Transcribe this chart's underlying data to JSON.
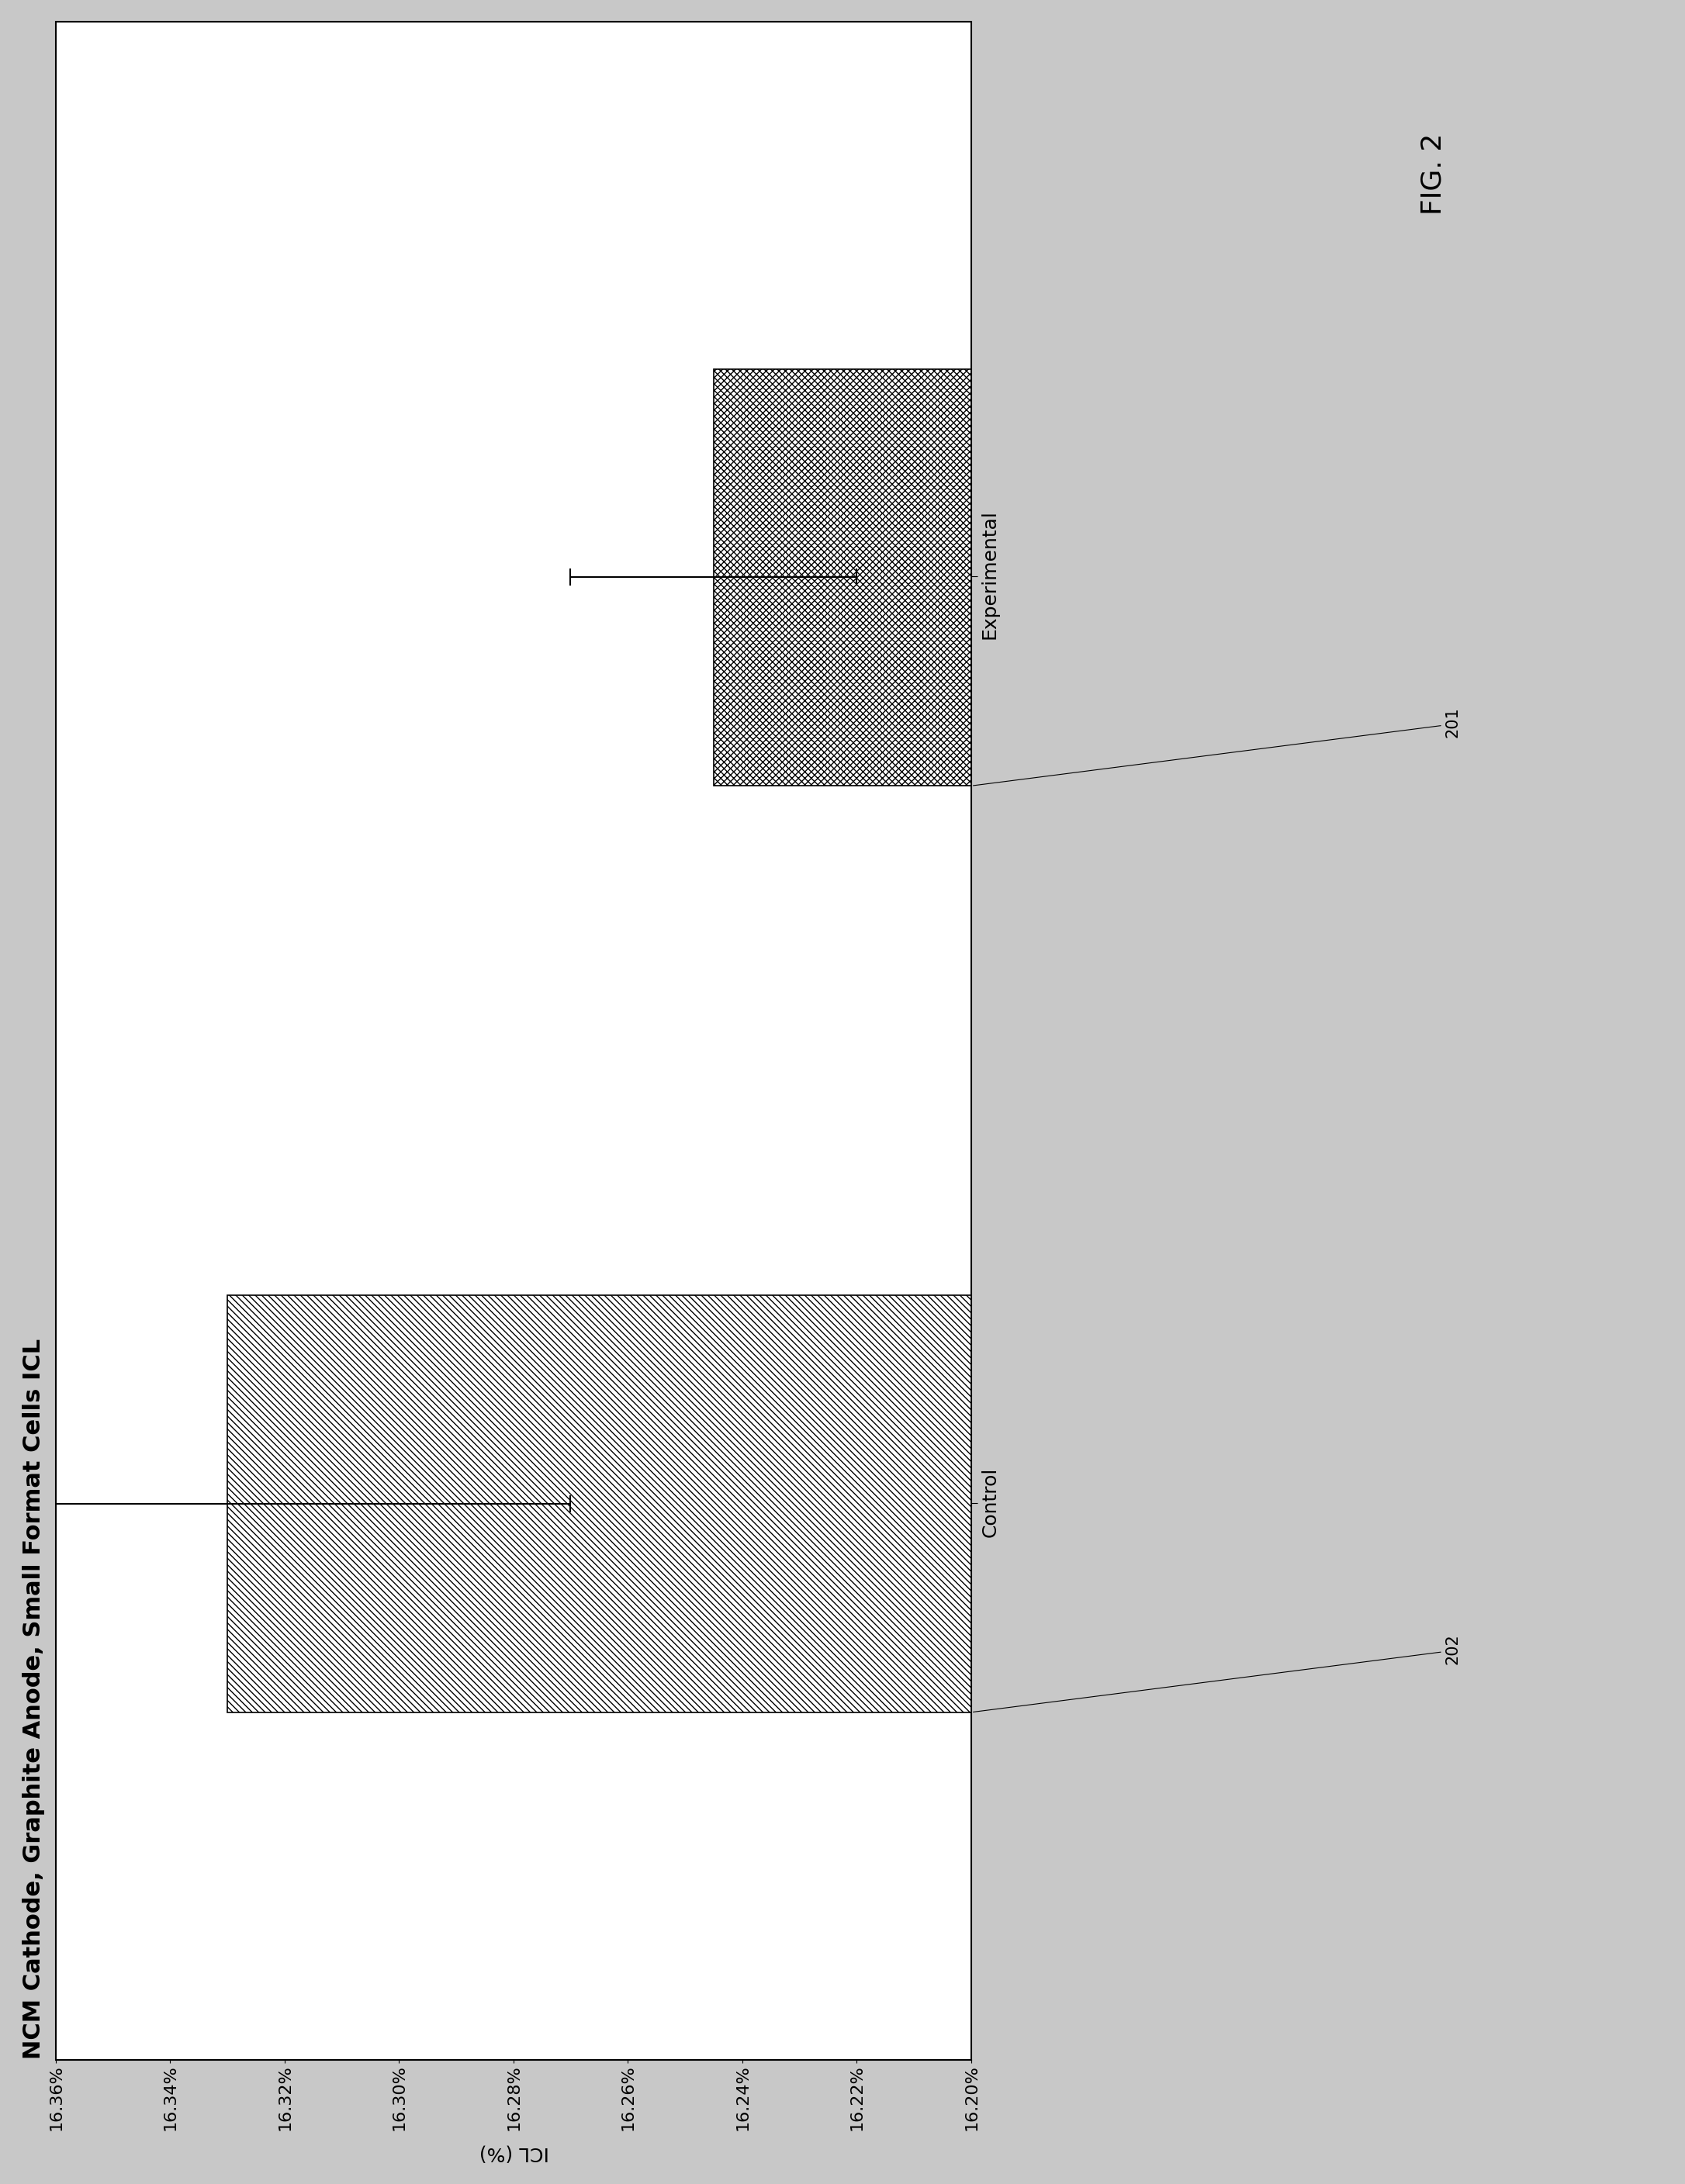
{
  "title": "NCM Cathode, Graphite Anode, Small Format Cells ICL",
  "ylabel": "ICL (%)",
  "categories": [
    "Control",
    "Experimental"
  ],
  "control_value": 0.1633,
  "experimental_value": 0.16245,
  "control_error": 0.0006,
  "experimental_error": 0.00025,
  "ylim_min": 0.162,
  "ylim_max": 0.1636,
  "ytick_vals": [
    0.1636,
    0.1634,
    0.1632,
    0.163,
    0.1628,
    0.1626,
    0.1624,
    0.1622,
    0.162
  ],
  "bar_label_control": "202",
  "bar_label_experimental": "201",
  "fig_label": "FIG. 2",
  "background_color": "#ffffff",
  "outer_bg": "#c8c8c8",
  "bar_hatch_control": "////",
  "bar_hatch_experimental": "xxxx",
  "bar_edgecolor": "#000000",
  "bar_facecolor": "#ffffff",
  "title_fontsize": 22,
  "axis_fontsize": 18,
  "tick_fontsize": 16,
  "label_fontsize": 15,
  "figlabel_fontsize": 26
}
